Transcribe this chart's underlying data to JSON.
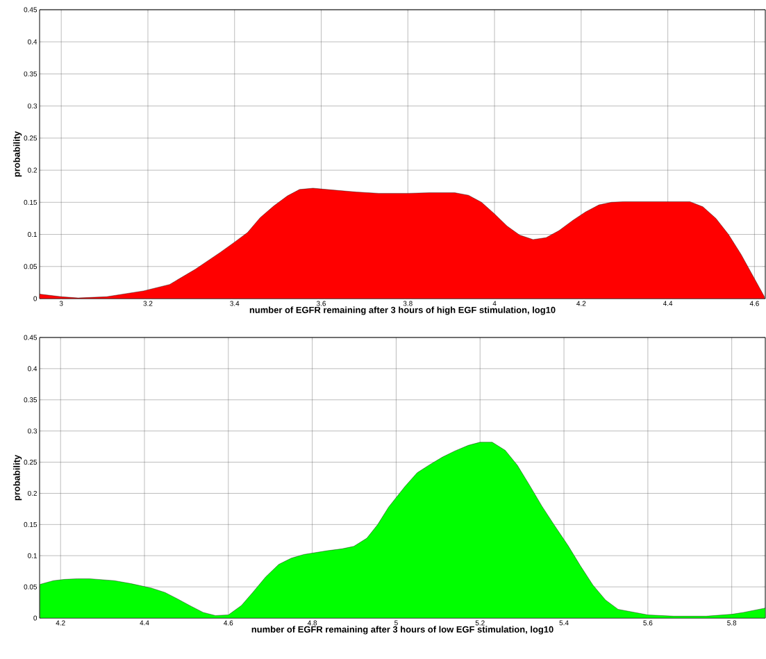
{
  "chart_data": [
    {
      "type": "area",
      "xlabel": "number of EGFR remaining after 3 hours of high EGF stimulation, log10",
      "ylabel": "probability",
      "color": "#ff0000",
      "grid": true,
      "xlim": [
        2.95,
        4.625
      ],
      "ylim": [
        0,
        0.45
      ],
      "xticks": [
        3,
        3.2,
        3.4,
        3.6,
        3.8,
        4,
        4.2,
        4.4,
        4.6
      ],
      "yticks": [
        0,
        0.05,
        0.1,
        0.15,
        0.2,
        0.25,
        0.3,
        0.35,
        0.4,
        0.45
      ],
      "x": [
        2.95,
        3.0,
        3.039,
        3.105,
        3.19,
        3.25,
        3.31,
        3.367,
        3.4,
        3.43,
        3.459,
        3.49,
        3.522,
        3.55,
        3.581,
        3.613,
        3.682,
        3.733,
        3.8,
        3.851,
        3.908,
        3.94,
        3.97,
        4.0,
        4.029,
        4.058,
        4.089,
        4.119,
        4.149,
        4.181,
        4.21,
        4.241,
        4.27,
        4.299,
        4.451,
        4.481,
        4.511,
        4.54,
        4.569,
        4.623
      ],
      "values": [
        0.007,
        0.003,
        0.001,
        0.003,
        0.012,
        0.022,
        0.046,
        0.072,
        0.088,
        0.103,
        0.126,
        0.144,
        0.16,
        0.17,
        0.172,
        0.17,
        0.166,
        0.164,
        0.164,
        0.165,
        0.165,
        0.161,
        0.15,
        0.132,
        0.113,
        0.099,
        0.092,
        0.095,
        0.106,
        0.122,
        0.135,
        0.146,
        0.15,
        0.151,
        0.151,
        0.143,
        0.125,
        0.1,
        0.069,
        0.003
      ]
    },
    {
      "type": "area",
      "xlabel": "number of EGFR remaining after 3 hours of low EGF stimulation, log10",
      "ylabel": "probability",
      "color": "#00ff00",
      "grid": true,
      "xlim": [
        4.15,
        5.88
      ],
      "ylim": [
        0,
        0.45
      ],
      "xticks": [
        4.2,
        4.4,
        4.6,
        4.8,
        5,
        5.2,
        5.4,
        5.6,
        5.8
      ],
      "yticks": [
        0,
        0.05,
        0.1,
        0.15,
        0.2,
        0.25,
        0.3,
        0.35,
        0.4,
        0.45
      ],
      "x": [
        4.151,
        4.183,
        4.21,
        4.24,
        4.269,
        4.328,
        4.369,
        4.417,
        4.449,
        4.478,
        4.511,
        4.54,
        4.569,
        4.6,
        4.631,
        4.658,
        4.689,
        4.72,
        4.75,
        4.78,
        4.836,
        4.871,
        4.899,
        4.93,
        4.956,
        4.982,
        5.021,
        5.05,
        5.08,
        5.11,
        5.14,
        5.172,
        5.2,
        5.229,
        5.26,
        5.289,
        5.318,
        5.347,
        5.377,
        5.41,
        5.439,
        5.469,
        5.499,
        5.529,
        5.6,
        5.662,
        5.739,
        5.8,
        5.828,
        5.88
      ],
      "values": [
        0.054,
        0.06,
        0.062,
        0.063,
        0.063,
        0.06,
        0.055,
        0.048,
        0.041,
        0.031,
        0.019,
        0.009,
        0.004,
        0.005,
        0.02,
        0.041,
        0.066,
        0.086,
        0.096,
        0.102,
        0.108,
        0.111,
        0.115,
        0.128,
        0.15,
        0.178,
        0.211,
        0.233,
        0.246,
        0.258,
        0.268,
        0.277,
        0.282,
        0.282,
        0.269,
        0.245,
        0.213,
        0.18,
        0.149,
        0.116,
        0.084,
        0.053,
        0.029,
        0.014,
        0.005,
        0.003,
        0.003,
        0.006,
        0.009,
        0.016
      ]
    }
  ]
}
